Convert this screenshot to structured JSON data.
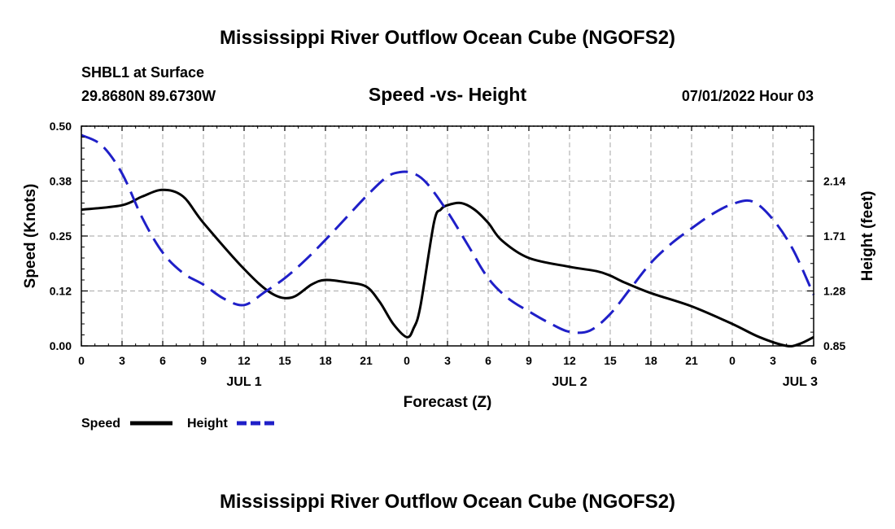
{
  "header": {
    "title": "Mississippi River Outflow Ocean Cube (NGOFS2)",
    "station": "SHBL1 at Surface",
    "coords": "29.8680N  89.6730W",
    "subtitle": "Speed -vs- Height",
    "datetime": "07/01/2022 Hour 03",
    "footer_title": "Mississippi River Outflow Ocean Cube (NGOFS2)"
  },
  "legend": {
    "speed_label": "Speed",
    "height_label": "Height"
  },
  "chart_data": {
    "type": "line",
    "title": "Speed -vs- Height",
    "xlabel": "Forecast (Z)",
    "ylabel": "Speed (Knots)",
    "y2label": "Height (feet)",
    "xlim": [
      0,
      54
    ],
    "ylim": [
      0,
      0.5
    ],
    "y2lim": [
      0.85,
      2.57
    ],
    "grid": true,
    "legend_position": "bottom-left",
    "x_ticks": [
      0,
      3,
      6,
      9,
      12,
      15,
      18,
      21,
      24,
      27,
      30,
      33,
      36,
      39,
      42,
      45,
      48,
      51,
      54
    ],
    "x_tick_labels": [
      "0",
      "3",
      "6",
      "9",
      "12",
      "15",
      "18",
      "21",
      "0",
      "3",
      "6",
      "9",
      "12",
      "15",
      "18",
      "21",
      "0",
      "3",
      "6"
    ],
    "date_labels": [
      {
        "x": 12,
        "label": "JUL 1"
      },
      {
        "x": 36,
        "label": "JUL 2"
      },
      {
        "x": 53,
        "label": "JUL 3"
      }
    ],
    "y_ticks": [
      0.0,
      0.125,
      0.25,
      0.375,
      0.5
    ],
    "y_tick_labels": [
      "0.00",
      "0.12",
      "0.25",
      "0.38",
      "0.50"
    ],
    "y2_ticks": [
      0.85,
      1.28,
      1.71,
      2.14
    ],
    "y2_tick_labels": [
      "0.85",
      "1.28",
      "1.71",
      "2.14"
    ],
    "colors": {
      "speed": "#000000",
      "height": "#1f1fc8",
      "grid": "#b4b4b4"
    },
    "series": [
      {
        "name": "Speed",
        "axis": "left",
        "style": "solid",
        "x": [
          0,
          3,
          4.5,
          6,
          7.5,
          9,
          12,
          14,
          15.5,
          17,
          18,
          19.5,
          21,
          22,
          23,
          24,
          24.5,
          25,
          26,
          26.5,
          27,
          28,
          29,
          30,
          31,
          33,
          36,
          38,
          39,
          40,
          42,
          45,
          48,
          50,
          52,
          53,
          54
        ],
        "values": [
          0.31,
          0.32,
          0.34,
          0.355,
          0.34,
          0.28,
          0.175,
          0.12,
          0.11,
          0.14,
          0.15,
          0.145,
          0.135,
          0.1,
          0.05,
          0.02,
          0.04,
          0.09,
          0.28,
          0.31,
          0.32,
          0.325,
          0.31,
          0.28,
          0.24,
          0.2,
          0.18,
          0.17,
          0.16,
          0.145,
          0.12,
          0.09,
          0.05,
          0.02,
          0.0,
          0.005,
          0.02
        ]
      },
      {
        "name": "Height",
        "axis": "right",
        "style": "dashed",
        "x": [
          0,
          1.5,
          3,
          4.5,
          6,
          7.5,
          9,
          10.5,
          12,
          13.5,
          15,
          16.5,
          18,
          19.5,
          21,
          22.5,
          23.5,
          24.5,
          25.5,
          27,
          28.5,
          30,
          31.5,
          33,
          34.5,
          36,
          37.5,
          39,
          40.5,
          42,
          43.5,
          45,
          46.5,
          48,
          49.5,
          51,
          52.5,
          54
        ],
        "values": [
          2.5,
          2.42,
          2.2,
          1.85,
          1.58,
          1.42,
          1.33,
          1.22,
          1.17,
          1.27,
          1.38,
          1.52,
          1.68,
          1.85,
          2.02,
          2.17,
          2.21,
          2.2,
          2.12,
          1.9,
          1.64,
          1.38,
          1.22,
          1.12,
          1.03,
          0.96,
          0.97,
          1.1,
          1.3,
          1.5,
          1.65,
          1.77,
          1.88,
          1.96,
          1.98,
          1.84,
          1.6,
          1.25
        ]
      }
    ]
  }
}
